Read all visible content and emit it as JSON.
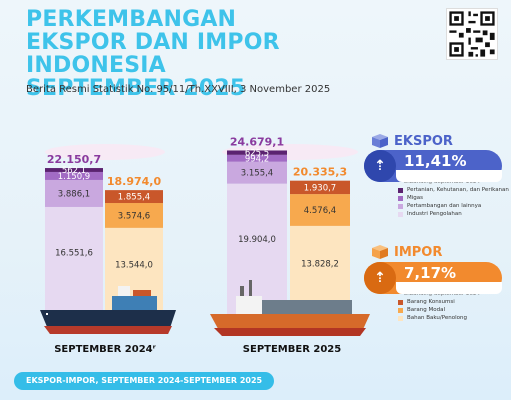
{
  "header": {
    "title_lines": [
      "PERKEMBANGAN",
      "EKSPOR DAN IMPOR INDONESIA",
      "SEPTEMBER 2025"
    ],
    "subtitle": "Berita Resmi Statistik No. 95/11/Th.XXVIII, 3 November 2025"
  },
  "chart_data": {
    "type": "bar",
    "stacked": true,
    "categories": [
      "SEPTEMBER 2024",
      "SEPTEMBER 2025"
    ],
    "category_labels": [
      "SEPTEMBER 2024ʳ",
      "SEPTEMBER 2025"
    ],
    "groups": [
      {
        "name": "EKSPOR",
        "color_total": "#8a3a9e",
        "totals": [
          "22.150,7",
          "24.679,1"
        ],
        "series": [
          {
            "name": "Industri Pengolahan",
            "color": "#e6d9f1",
            "values": [
              16551.6,
              19904.0
            ],
            "labels": [
              "16.551,6",
              "19.904,0"
            ]
          },
          {
            "name": "Pertambangan dan lainnya",
            "color": "#c9a8df",
            "values": [
              3886.1,
              3155.4
            ],
            "labels": [
              "3.886,1",
              "3.155,4"
            ]
          },
          {
            "name": "Migas",
            "color": "#a26bc4",
            "values": [
              1150.9,
              994.2
            ],
            "labels": [
              "1.150,9",
              "994,2"
            ]
          },
          {
            "name": "Pertanian, Kehutanan, dan Perikanan",
            "color": "#5b2270",
            "values": [
              562.1,
              625.5
            ],
            "labels": [
              "562,1",
              "625,5"
            ]
          }
        ]
      },
      {
        "name": "IMPOR",
        "color_total": "#f28a2e",
        "totals": [
          "18.974,0",
          "20.335,3"
        ],
        "series": [
          {
            "name": "Bahan Baku/Penolong",
            "color": "#fde5c0",
            "values": [
              13544.0,
              13828.2
            ],
            "labels": [
              "13.544,0",
              "13.828,2"
            ]
          },
          {
            "name": "Barang Modal",
            "color": "#f7a94e",
            "values": [
              3574.6,
              4576.4
            ],
            "labels": [
              "3.574,6",
              "4.576,4"
            ]
          },
          {
            "name": "Barang Konsumsi",
            "color": "#c9572a",
            "values": [
              1855.4,
              1930.7
            ],
            "labels": [
              "1.855,4",
              "1.930,7"
            ]
          }
        ]
      }
    ]
  },
  "ekspor": {
    "title": "EKSPOR",
    "change": "11,41%",
    "note": "Dibanding September 2024",
    "color": "#4c63c9",
    "legend": [
      {
        "label": "Pertanian, Kehutanan, dan Perikanan",
        "color": "#5b2270"
      },
      {
        "label": "Migas",
        "color": "#a26bc4"
      },
      {
        "label": "Pertambangan dan lainnya",
        "color": "#c9a8df"
      },
      {
        "label": "Industri Pengolahan",
        "color": "#e6d9f1"
      }
    ]
  },
  "impor": {
    "title": "IMPOR",
    "change": "7,17%",
    "note": "Dibanding September 2024",
    "color": "#f28a2e",
    "legend": [
      {
        "label": "Barang Konsumsi",
        "color": "#c9572a"
      },
      {
        "label": "Barang Modal",
        "color": "#f7a94e"
      },
      {
        "label": "Bahan Baku/Penolong",
        "color": "#fde5c0"
      }
    ]
  },
  "footer": {
    "label": "EKSPOR-IMPOR, SEPTEMBER 2024-SEPTEMBER 2025"
  }
}
